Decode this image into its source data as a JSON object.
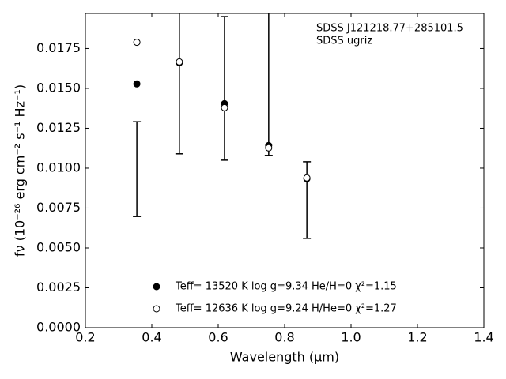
{
  "chart_data": {
    "type": "scatter",
    "xlabel": "Wavelength (μm)",
    "ylabel": "fν (10⁻²⁶ erg cm⁻² s⁻¹ Hz⁻¹)",
    "annotations": [
      "SDSS J121218.77+285101.5",
      "SDSS ugriz"
    ],
    "xlim": [
      0.2,
      1.4
    ],
    "xticks": [
      0.2,
      0.4,
      0.6,
      0.8,
      {
        "value": 1,
        "label": "1.0"
      },
      1.2,
      1.4
    ],
    "ylim": [
      0,
      0.0197
    ],
    "yticks": [
      {
        "value": 0,
        "label": "0.0000"
      },
      {
        "value": 0.0025,
        "label": "0.0025"
      },
      {
        "value": 0.005,
        "label": "0.0050"
      },
      {
        "value": 0.0075,
        "label": "0.0075"
      },
      {
        "value": 0.01,
        "label": "0.0100"
      },
      {
        "value": 0.0125,
        "label": "0.0125"
      },
      {
        "value": 0.015,
        "label": "0.0150"
      },
      {
        "value": 0.0175,
        "label": "0.0175"
      }
    ],
    "x": [
      0.355,
      0.483,
      0.619,
      0.752,
      0.867
    ],
    "series": [
      {
        "values": [
          0.00994,
          0.0166,
          0.015,
          0.017,
          0.008
        ],
        "errors": [
          0.00297,
          0.0057,
          0.0045,
          0.0062,
          0.0024
        ],
        "color": "#000000",
        "marker": "errorbar"
      },
      {
        "name": "Teff= 13520 K  log g=9.34  He/H=0  χ²=1.15",
        "values": [
          0.01528,
          0.01661,
          0.01404,
          0.01142,
          0.00934
        ],
        "color": "#000000",
        "marker": "filled"
      },
      {
        "name": "Teff= 12636 K  log g=9.24  H/He=0  χ²=1.27",
        "values": [
          0.01789,
          0.01666,
          0.01379,
          0.01127,
          0.00939
        ],
        "color": "#000000",
        "marker": "open"
      }
    ]
  }
}
